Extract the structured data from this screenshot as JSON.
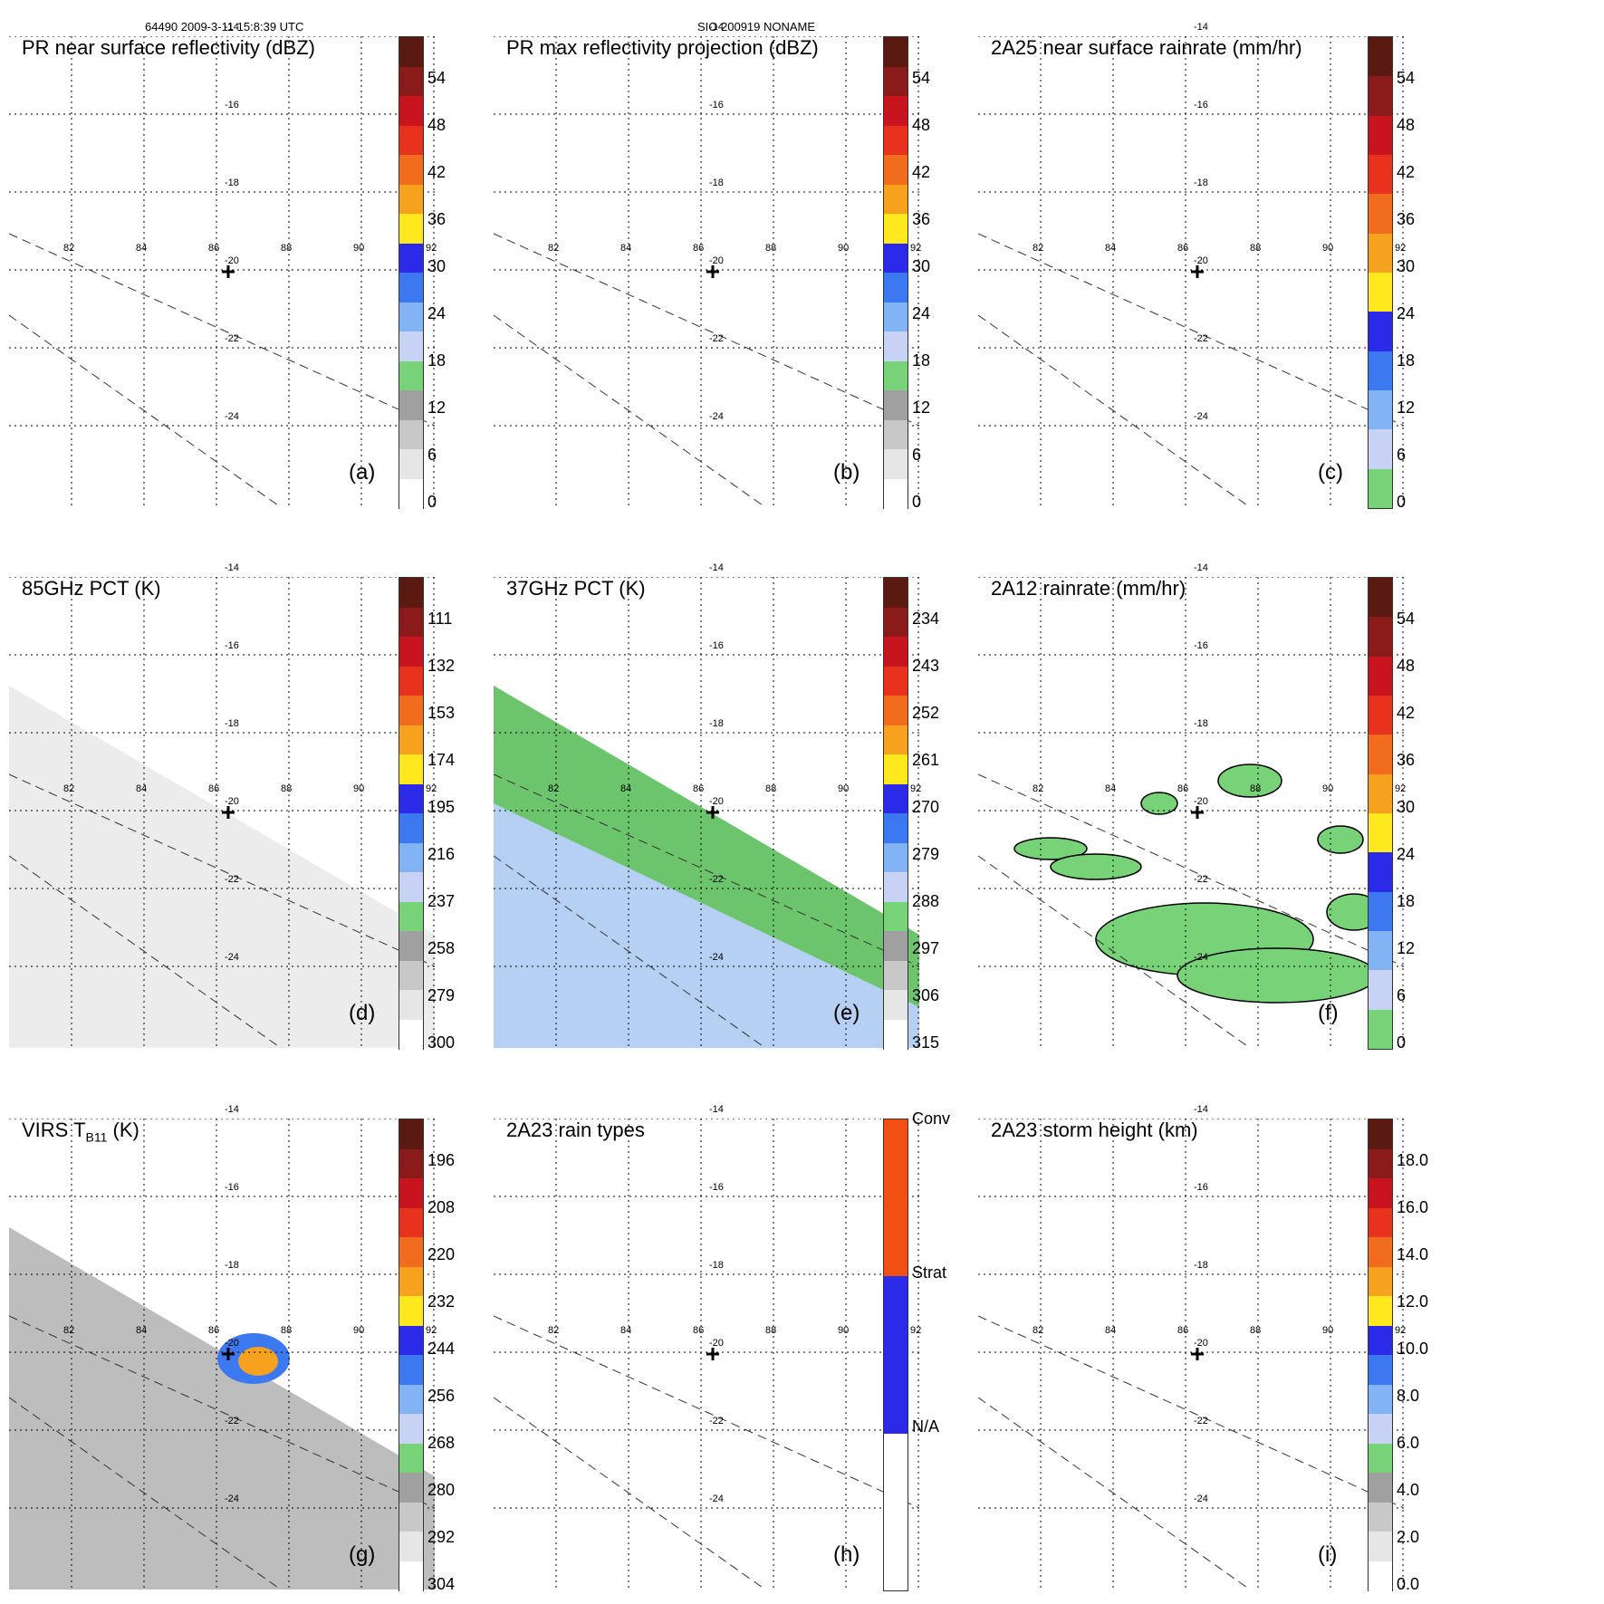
{
  "header": {
    "left": "64490 2009-3-11 15:8:39 UTC",
    "center": "SIO 200919 NONAME"
  },
  "lat_labels": [
    "-14",
    "-16",
    "-18",
    "-20",
    "-22",
    "-24"
  ],
  "lon_labels": [
    "82",
    "84",
    "86",
    "88",
    "90",
    "92"
  ],
  "panels": [
    {
      "id": "a",
      "title": "PR near surface reflectivity (dBZ)",
      "letter": "(a)",
      "ticks": [
        "54",
        "48",
        "42",
        "36",
        "30",
        "24",
        "18",
        "12",
        "6",
        "0"
      ],
      "colors": [
        "#5a1a12",
        "#8b1a1a",
        "#c8141e",
        "#e8321e",
        "#f26c1e",
        "#f7a21e",
        "#ffe81e",
        "#2a2ae8",
        "#3c78f0",
        "#82b4f5",
        "#c8d2f5",
        "#78d278",
        "#a0a0a0",
        "#c8c8c8",
        "#e6e6e6",
        "#ffffff"
      ]
    },
    {
      "id": "b",
      "title": "PR max reflectivity projection (dBZ)",
      "letter": "(b)",
      "ticks": [
        "54",
        "48",
        "42",
        "36",
        "30",
        "24",
        "18",
        "12",
        "6",
        "0"
      ],
      "colors": [
        "#5a1a12",
        "#8b1a1a",
        "#c8141e",
        "#e8321e",
        "#f26c1e",
        "#f7a21e",
        "#ffe81e",
        "#2a2ae8",
        "#3c78f0",
        "#82b4f5",
        "#c8d2f5",
        "#78d278",
        "#a0a0a0",
        "#c8c8c8",
        "#e6e6e6",
        "#ffffff"
      ]
    },
    {
      "id": "c",
      "title": "2A25 near surface rainrate (mm/hr)",
      "letter": "(c)",
      "ticks": [
        "54",
        "48",
        "42",
        "36",
        "30",
        "24",
        "18",
        "12",
        "6",
        "0"
      ],
      "colors": [
        "#5a1a12",
        "#8b1a1a",
        "#c8141e",
        "#e8321e",
        "#f26c1e",
        "#f7a21e",
        "#ffe81e",
        "#2a2ae8",
        "#3c78f0",
        "#82b4f5",
        "#c8d2f5",
        "#78d278"
      ]
    },
    {
      "id": "d",
      "title": "85GHz PCT (K)",
      "letter": "(d)",
      "ticks": [
        "111",
        "132",
        "153",
        "174",
        "195",
        "216",
        "237",
        "258",
        "279",
        "300"
      ],
      "colors": [
        "#5a1a12",
        "#8b1a1a",
        "#c8141e",
        "#e8321e",
        "#f26c1e",
        "#f7a21e",
        "#ffe81e",
        "#2a2ae8",
        "#3c78f0",
        "#82b4f5",
        "#c8d2f5",
        "#78d278",
        "#a0a0a0",
        "#c8c8c8",
        "#e6e6e6",
        "#ffffff"
      ]
    },
    {
      "id": "e",
      "title": "37GHz PCT (K)",
      "letter": "(e)",
      "ticks": [
        "234",
        "243",
        "252",
        "261",
        "270",
        "279",
        "288",
        "297",
        "306",
        "315"
      ],
      "colors": [
        "#5a1a12",
        "#8b1a1a",
        "#c8141e",
        "#e8321e",
        "#f26c1e",
        "#f7a21e",
        "#ffe81e",
        "#2a2ae8",
        "#3c78f0",
        "#82b4f5",
        "#c8d2f5",
        "#78d278",
        "#a0a0a0",
        "#c8c8c8",
        "#e6e6e6",
        "#ffffff"
      ]
    },
    {
      "id": "f",
      "title": "2A12 rainrate (mm/hr)",
      "letter": "(f)",
      "ticks": [
        "54",
        "48",
        "42",
        "36",
        "30",
        "24",
        "18",
        "12",
        "6",
        "0"
      ],
      "colors": [
        "#5a1a12",
        "#8b1a1a",
        "#c8141e",
        "#e8321e",
        "#f26c1e",
        "#f7a21e",
        "#ffe81e",
        "#2a2ae8",
        "#3c78f0",
        "#82b4f5",
        "#c8d2f5",
        "#78d278"
      ]
    },
    {
      "id": "g",
      "title": "VIRS T",
      "title_sub": "B11",
      "title_tail": " (K)",
      "letter": "(g)",
      "ticks": [
        "196",
        "208",
        "220",
        "232",
        "244",
        "256",
        "268",
        "280",
        "292",
        "304"
      ],
      "colors": [
        "#5a1a12",
        "#8b1a1a",
        "#c8141e",
        "#e8321e",
        "#f26c1e",
        "#f7a21e",
        "#ffe81e",
        "#2a2ae8",
        "#3c78f0",
        "#82b4f5",
        "#c8d2f5",
        "#78d278",
        "#a0a0a0",
        "#c8c8c8",
        "#e6e6e6",
        "#ffffff"
      ]
    },
    {
      "id": "h",
      "title": "2A23 rain types",
      "letter": "(h)",
      "ticks": [
        "Conv",
        "Strat",
        "N/A"
      ],
      "colors": [
        "#f05014",
        "#2a2ae8",
        "#ffffff"
      ]
    },
    {
      "id": "i",
      "title": "2A23 storm height (km)",
      "letter": "(i)",
      "ticks": [
        "18.0",
        "16.0",
        "14.0",
        "12.0",
        "10.0",
        "8.0",
        "6.0",
        "4.0",
        "2.0",
        "0.0"
      ],
      "colors": [
        "#5a1a12",
        "#8b1a1a",
        "#c8141e",
        "#e8321e",
        "#f26c1e",
        "#f7a21e",
        "#ffe81e",
        "#2a2ae8",
        "#3c78f0",
        "#82b4f5",
        "#c8d2f5",
        "#78d278",
        "#a0a0a0",
        "#c8c8c8",
        "#e6e6e6",
        "#ffffff"
      ]
    }
  ]
}
